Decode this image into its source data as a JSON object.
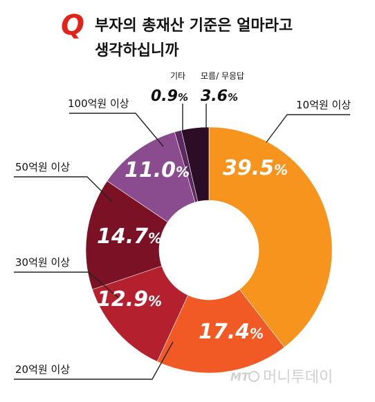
{
  "header": {
    "q_mark": "Q",
    "title_line1": "부자의 총재산 기준은 얼마라고",
    "title_line2": "생각하십니까"
  },
  "watermark": {
    "logo": "MT",
    "text": "머니투데이"
  },
  "colors": {
    "accent_red": "#e2231a",
    "leader": "#222222"
  },
  "chart_data": {
    "type": "pie",
    "title": "부자의 총재산 기준은 얼마라고 생각하십니까",
    "donut": true,
    "start": "12 o'clock, clockwise",
    "value_suffix": "%",
    "slices": [
      {
        "label": "10억원 이상",
        "value": 39.5,
        "display": "39.5",
        "color": "#f7941d"
      },
      {
        "label": "20억원 이상",
        "value": 17.4,
        "display": "17.4",
        "color": "#f15a24"
      },
      {
        "label": "30억원 이상",
        "value": 12.9,
        "display": "12.9",
        "color": "#b5202e"
      },
      {
        "label": "50억원 이상",
        "value": 14.7,
        "display": "14.7",
        "color": "#7b1124"
      },
      {
        "label": "100억원 이상",
        "value": 11.0,
        "display": "11.0",
        "color": "#8a4b8f"
      },
      {
        "label": "기타",
        "value": 0.9,
        "display": "0.9",
        "color": "#5c2a5e"
      },
      {
        "label": "모름/ 무응답",
        "value": 3.6,
        "display": "3.6",
        "color": "#2b0d26"
      }
    ]
  }
}
